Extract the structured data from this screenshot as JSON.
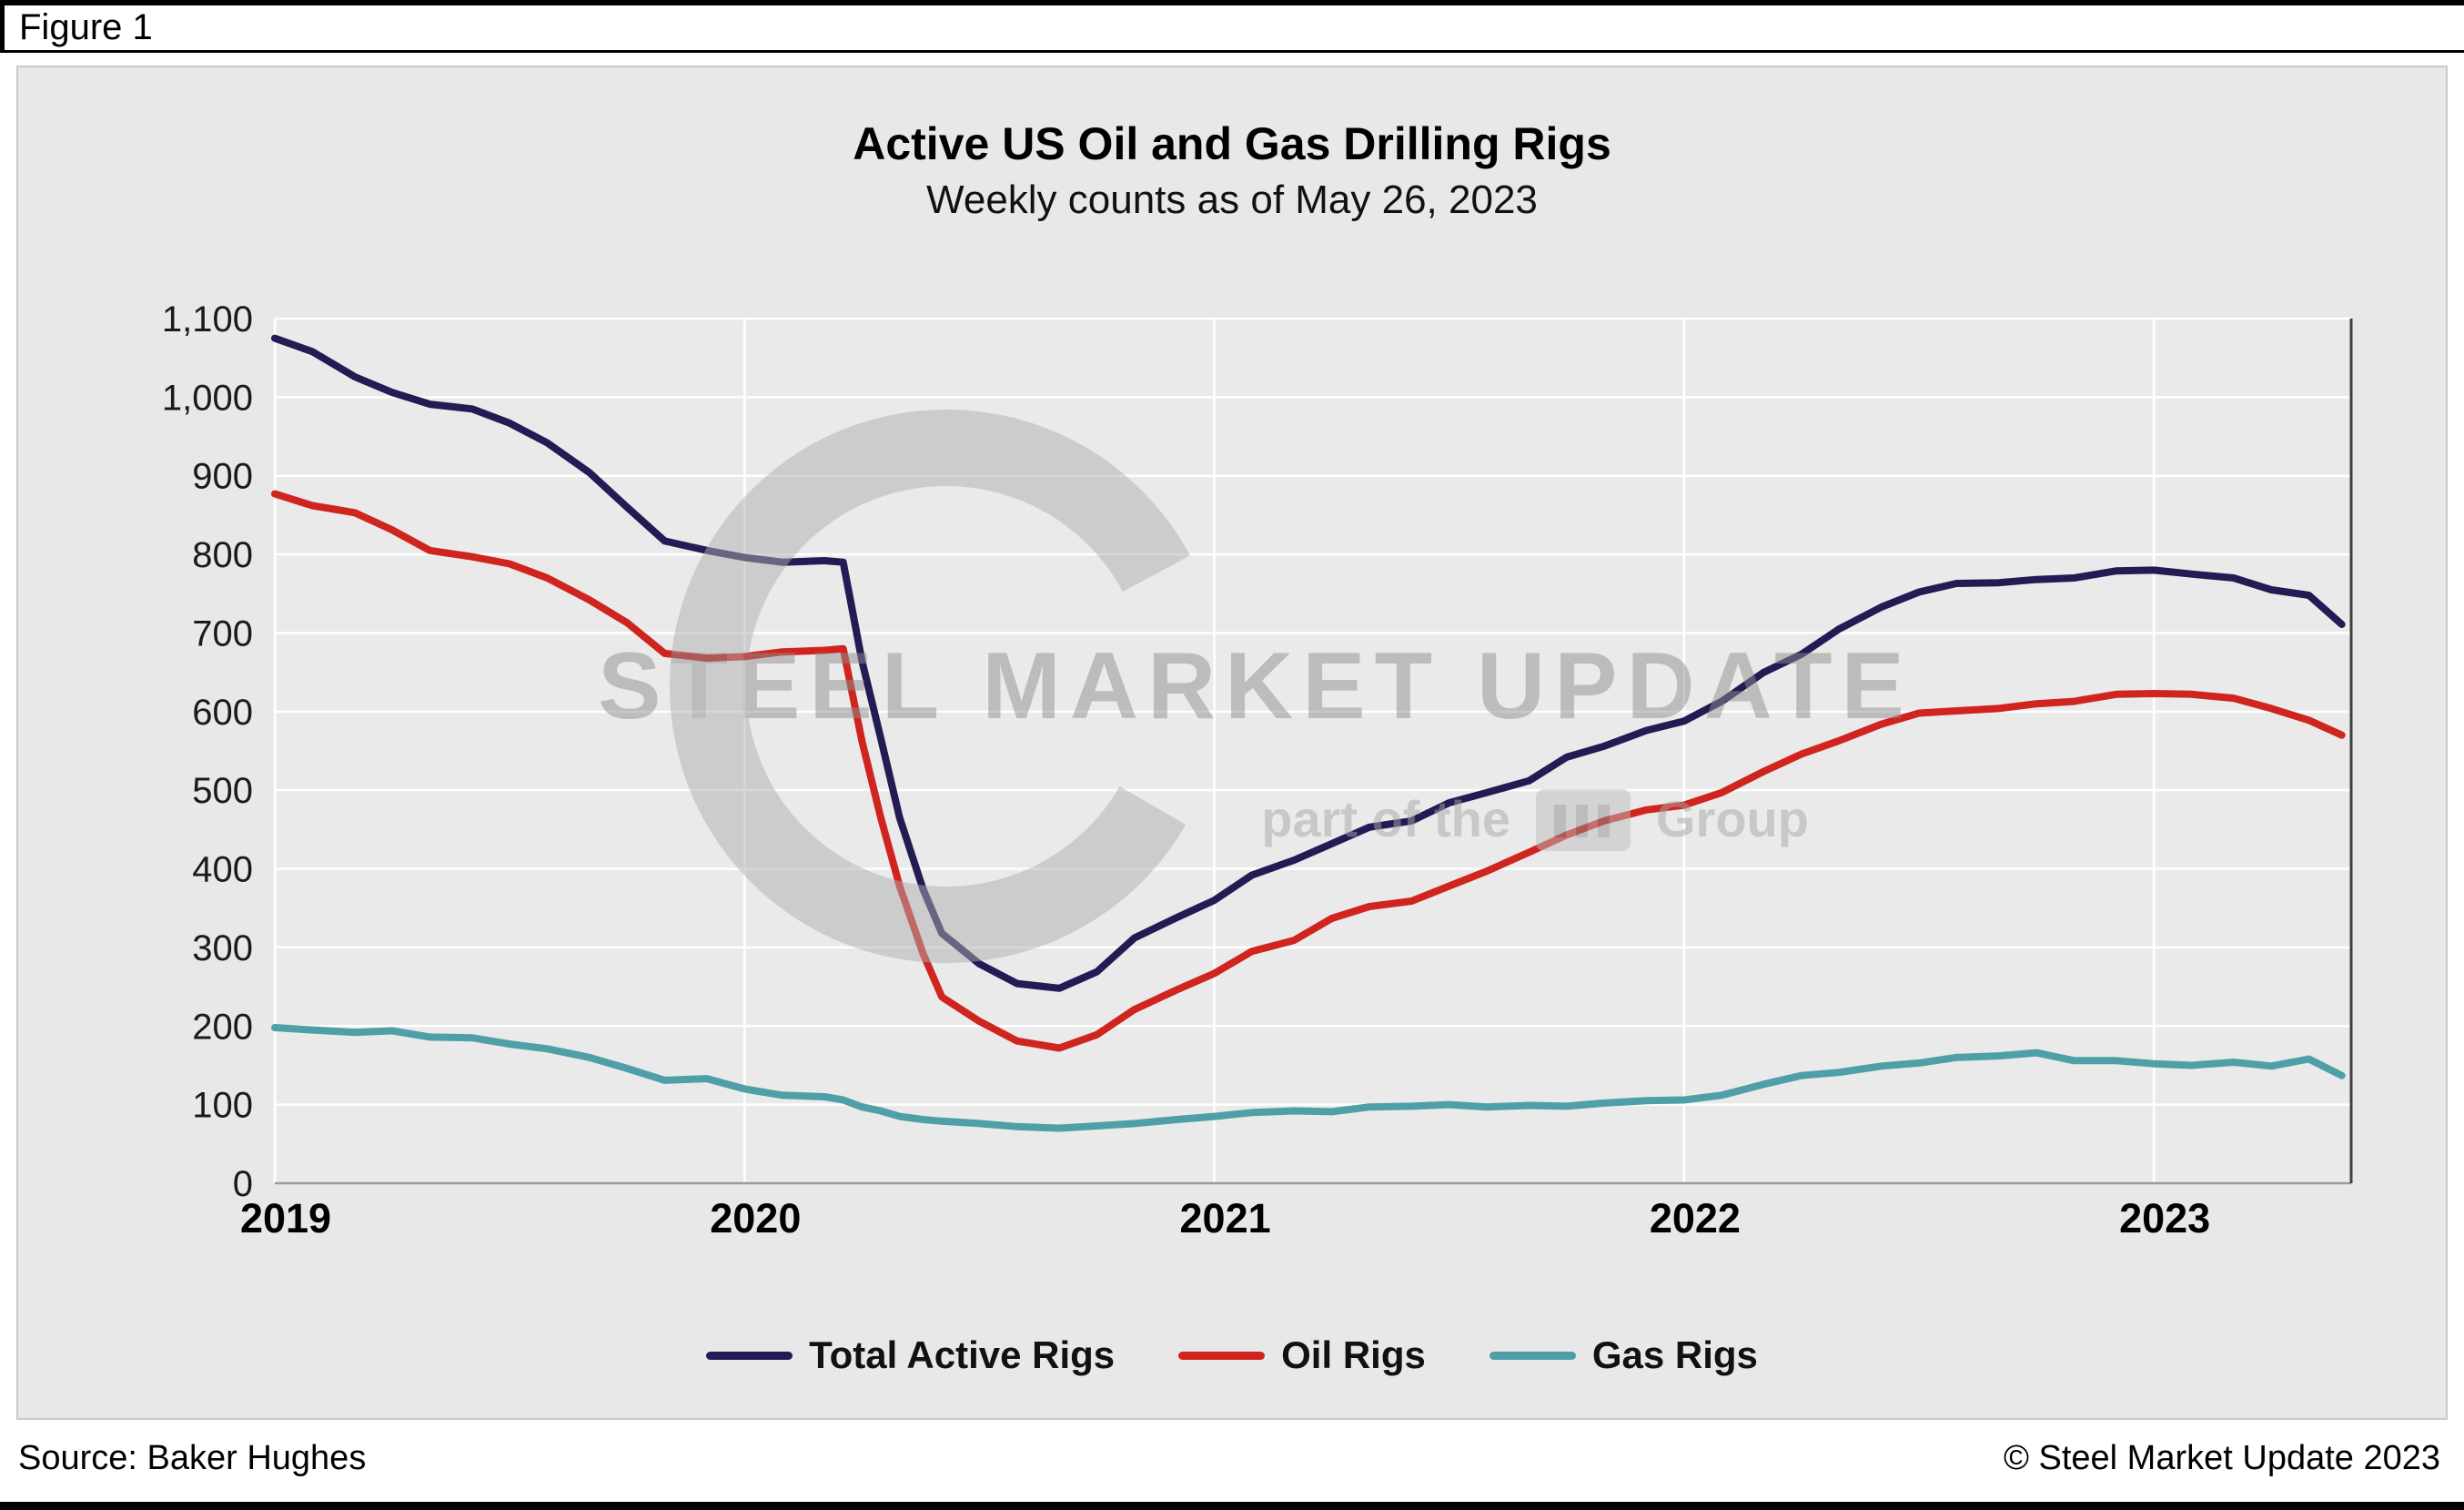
{
  "figure_label": "Figure 1",
  "chart_data": {
    "type": "line",
    "title": "Active US Oil and Gas Drilling Rigs",
    "subtitle": "Weekly counts as of May 26, 2023",
    "xlabel": "",
    "ylabel": "",
    "xlim": [
      2019.0,
      2023.42
    ],
    "ylim": [
      0,
      1100
    ],
    "grid": true,
    "legend_position": "bottom",
    "xticks": [
      "2019",
      "2020",
      "2021",
      "2022",
      "2023"
    ],
    "yticks": [
      "0",
      "100",
      "200",
      "300",
      "400",
      "500",
      "600",
      "700",
      "800",
      "900",
      "1,000",
      "1,100"
    ],
    "x": [
      2019.0,
      2019.08,
      2019.17,
      2019.25,
      2019.33,
      2019.42,
      2019.5,
      2019.58,
      2019.67,
      2019.75,
      2019.83,
      2019.92,
      2020.0,
      2020.08,
      2020.17,
      2020.21,
      2020.25,
      2020.29,
      2020.33,
      2020.38,
      2020.42,
      2020.5,
      2020.58,
      2020.67,
      2020.75,
      2020.83,
      2020.92,
      2021.0,
      2021.08,
      2021.17,
      2021.25,
      2021.33,
      2021.42,
      2021.5,
      2021.58,
      2021.67,
      2021.75,
      2021.83,
      2021.92,
      2022.0,
      2022.08,
      2022.17,
      2022.25,
      2022.33,
      2022.42,
      2022.5,
      2022.58,
      2022.67,
      2022.75,
      2022.83,
      2022.92,
      2023.0,
      2023.08,
      2023.17,
      2023.25,
      2023.33,
      2023.4
    ],
    "series": [
      {
        "name": "Total Active Rigs",
        "color": "#211d54",
        "values": [
          1075,
          1058,
          1026,
          1006,
          991,
          985,
          967,
          942,
          904,
          860,
          817,
          805,
          796,
          790,
          792,
          790,
          664,
          566,
          465,
          374,
          318,
          279,
          254,
          248,
          269,
          312,
          338,
          360,
          392,
          411,
          432,
          453,
          461,
          484,
          497,
          512,
          542,
          556,
          576,
          588,
          613,
          650,
          673,
          705,
          733,
          752,
          763,
          764,
          768,
          770,
          779,
          780,
          775,
          770,
          755,
          748,
          711
        ]
      },
      {
        "name": "Oil Rigs",
        "color": "#d0241f",
        "values": [
          877,
          862,
          853,
          831,
          805,
          797,
          788,
          770,
          742,
          713,
          674,
          668,
          670,
          676,
          678,
          680,
          562,
          465,
          378,
          292,
          237,
          206,
          181,
          172,
          189,
          221,
          246,
          267,
          295,
          309,
          337,
          352,
          359,
          378,
          397,
          421,
          443,
          461,
          475,
          481,
          497,
          524,
          546,
          563,
          584,
          598,
          601,
          604,
          610,
          613,
          622,
          623,
          622,
          617,
          604,
          589,
          570
        ]
      },
      {
        "name": "Gas Rigs",
        "color": "#4f9fa8",
        "values": [
          198,
          195,
          192,
          194,
          186,
          185,
          177,
          171,
          160,
          146,
          131,
          133,
          120,
          112,
          110,
          106,
          97,
          92,
          85,
          81,
          79,
          76,
          72,
          70,
          73,
          76,
          81,
          85,
          90,
          92,
          91,
          97,
          98,
          100,
          97,
          99,
          98,
          102,
          105,
          106,
          112,
          126,
          137,
          141,
          149,
          153,
          160,
          162,
          166,
          156,
          156,
          152,
          150,
          154,
          149,
          158,
          137
        ]
      }
    ]
  },
  "watermark": {
    "text": "STEEL MARKET UPDATE",
    "sub_prefix": "part of the",
    "sub_suffix": "Group"
  },
  "footer": {
    "source": "Source: Baker Hughes",
    "copyright": "© Steel Market Update 2023"
  }
}
